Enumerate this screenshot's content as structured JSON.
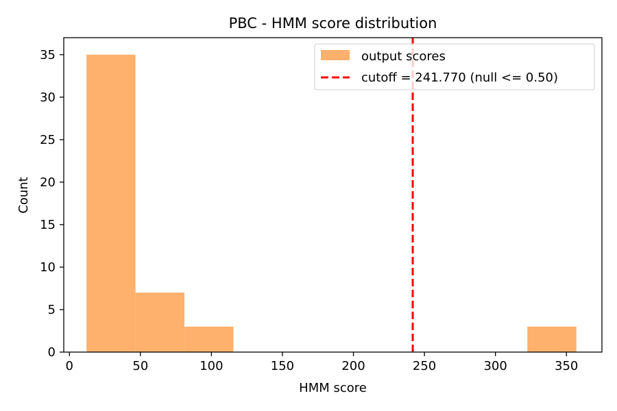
{
  "chart_data": {
    "type": "bar",
    "title": "PBC - HMM score distribution",
    "xlabel": "HMM score",
    "ylabel": "Count",
    "xlim": [
      -4,
      375
    ],
    "ylim": [
      0,
      37
    ],
    "x_ticks": [
      0,
      50,
      100,
      150,
      200,
      250,
      300,
      350
    ],
    "x_tick_labels": [
      "0",
      "50",
      "100",
      "150",
      "200",
      "250",
      "300",
      "350"
    ],
    "y_ticks": [
      0,
      5,
      10,
      15,
      20,
      25,
      30,
      35
    ],
    "y_tick_labels": [
      "0",
      "5",
      "10",
      "15",
      "20",
      "25",
      "30",
      "35"
    ],
    "grid": false,
    "legend_position": "top-right",
    "series": [
      {
        "name": "output scores",
        "color": "#fdb16d",
        "bins": [
          {
            "x0": 12,
            "x1": 46.5,
            "count": 35
          },
          {
            "x0": 46.5,
            "x1": 81,
            "count": 7
          },
          {
            "x0": 81,
            "x1": 115.5,
            "count": 3
          },
          {
            "x0": 115.5,
            "x1": 150,
            "count": 0
          },
          {
            "x0": 150,
            "x1": 184.5,
            "count": 0
          },
          {
            "x0": 184.5,
            "x1": 219,
            "count": 0
          },
          {
            "x0": 219,
            "x1": 253.5,
            "count": 0
          },
          {
            "x0": 253.5,
            "x1": 288,
            "count": 0
          },
          {
            "x0": 288,
            "x1": 322.5,
            "count": 0
          },
          {
            "x0": 322.5,
            "x1": 357,
            "count": 3
          }
        ]
      }
    ],
    "reference_line": {
      "x": 241.77,
      "label": "cutoff = 241.770 (null <= 0.50)",
      "color": "#ff0000",
      "style": "dashed"
    }
  }
}
